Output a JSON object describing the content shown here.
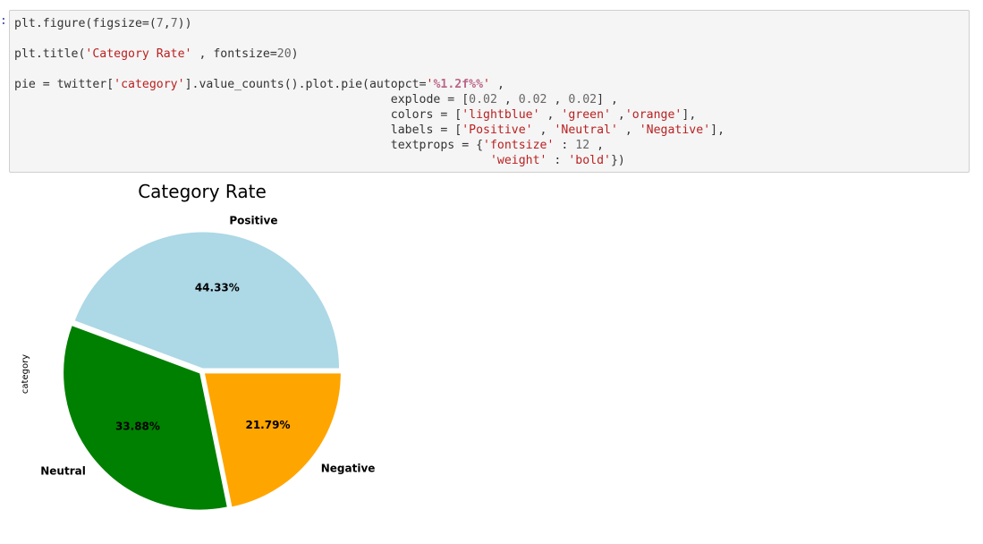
{
  "cell": {
    "gutter_marker": ":",
    "code_lines": [
      [
        {
          "t": "plt.figure(figsize=(",
          "c": ""
        },
        {
          "t": "7",
          "c": "num"
        },
        {
          "t": ",",
          "c": ""
        },
        {
          "t": "7",
          "c": "num"
        },
        {
          "t": "))",
          "c": ""
        }
      ],
      [],
      [
        {
          "t": "plt.title(",
          "c": ""
        },
        {
          "t": "'Category Rate'",
          "c": "str"
        },
        {
          "t": " , fontsize=",
          "c": ""
        },
        {
          "t": "20",
          "c": "num"
        },
        {
          "t": ")",
          "c": ""
        }
      ],
      [],
      [
        {
          "t": "pie = twitter[",
          "c": ""
        },
        {
          "t": "'category'",
          "c": "str"
        },
        {
          "t": "].value_counts().plot.pie(autopct=",
          "c": ""
        },
        {
          "t": "'",
          "c": "str"
        },
        {
          "t": "%1.2f%%",
          "c": "fmt"
        },
        {
          "t": "'",
          "c": "str"
        },
        {
          "t": " ,",
          "c": ""
        }
      ],
      [
        {
          "t": "                                                     explode = [",
          "c": ""
        },
        {
          "t": "0.02",
          "c": "num"
        },
        {
          "t": " , ",
          "c": ""
        },
        {
          "t": "0.02",
          "c": "num"
        },
        {
          "t": " , ",
          "c": ""
        },
        {
          "t": "0.02",
          "c": "num"
        },
        {
          "t": "] ,",
          "c": ""
        }
      ],
      [
        {
          "t": "                                                     colors = [",
          "c": ""
        },
        {
          "t": "'lightblue'",
          "c": "str"
        },
        {
          "t": " , ",
          "c": ""
        },
        {
          "t": "'green'",
          "c": "str"
        },
        {
          "t": " ,",
          "c": ""
        },
        {
          "t": "'orange'",
          "c": "str"
        },
        {
          "t": "],",
          "c": ""
        }
      ],
      [
        {
          "t": "                                                     labels = [",
          "c": ""
        },
        {
          "t": "'Positive'",
          "c": "str"
        },
        {
          "t": " , ",
          "c": ""
        },
        {
          "t": "'Neutral'",
          "c": "str"
        },
        {
          "t": " , ",
          "c": ""
        },
        {
          "t": "'Negative'",
          "c": "str"
        },
        {
          "t": "],",
          "c": ""
        }
      ],
      [
        {
          "t": "                                                     textprops = {",
          "c": ""
        },
        {
          "t": "'fontsize'",
          "c": "str"
        },
        {
          "t": " : ",
          "c": ""
        },
        {
          "t": "12",
          "c": "num"
        },
        {
          "t": " ,",
          "c": ""
        }
      ],
      [
        {
          "t": "                                                                   ",
          "c": ""
        },
        {
          "t": "'weight'",
          "c": "str"
        },
        {
          "t": " : ",
          "c": ""
        },
        {
          "t": "'bold'",
          "c": "str"
        },
        {
          "t": "})",
          "c": ""
        }
      ]
    ]
  },
  "chart_data": {
    "type": "pie",
    "title": "Category Rate",
    "ylabel": "category",
    "startangle_deg": 0,
    "direction": "counterclockwise",
    "explode": [
      0.02,
      0.02,
      0.02
    ],
    "slices": [
      {
        "label": "Positive",
        "value": 44.33,
        "pct_label": "44.33%",
        "color": "#add8e6"
      },
      {
        "label": "Neutral",
        "value": 33.88,
        "pct_label": "33.88%",
        "color": "#008000"
      },
      {
        "label": "Negative",
        "value": 21.79,
        "pct_label": "21.79%",
        "color": "#ffa500"
      }
    ]
  }
}
